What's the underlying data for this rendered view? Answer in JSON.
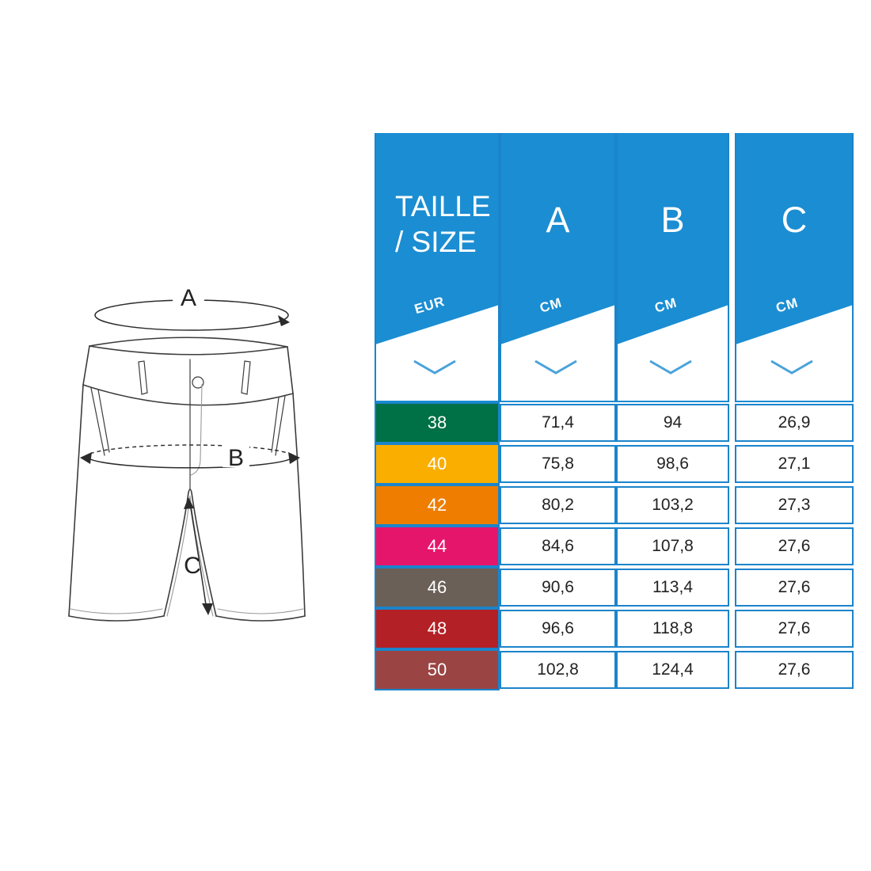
{
  "chart_data": {
    "type": "table",
    "title": "TAILLE / SIZE",
    "header": {
      "size_title_line1": "TAILLE",
      "size_title_line2": "/ SIZE",
      "size_unit": "EUR",
      "col_a_label": "A",
      "col_a_unit": "CM",
      "col_b_label": "B",
      "col_b_unit": "CM",
      "col_c_label": "C",
      "col_c_unit": "CM"
    },
    "rows": [
      {
        "size": "38",
        "color": "#007046",
        "a": "71,4",
        "b": "94",
        "c": "26,9"
      },
      {
        "size": "40",
        "color": "#F9AE00",
        "a": "75,8",
        "b": "98,6",
        "c": "27,1"
      },
      {
        "size": "42",
        "color": "#EE7D00",
        "a": "80,2",
        "b": "103,2",
        "c": "27,3"
      },
      {
        "size": "44",
        "color": "#E6156C",
        "a": "84,6",
        "b": "107,8",
        "c": "27,6"
      },
      {
        "size": "46",
        "color": "#6B6058",
        "a": "90,6",
        "b": "113,4",
        "c": "27,6"
      },
      {
        "size": "48",
        "color": "#B32025",
        "a": "96,6",
        "b": "118,8",
        "c": "27,6"
      },
      {
        "size": "50",
        "color": "#9B4444",
        "a": "102,8",
        "b": "124,4",
        "c": "27,6"
      }
    ]
  },
  "diagram": {
    "waist_label": "A",
    "hip_label": "B",
    "inseam_label": "C"
  },
  "colors": {
    "header_blue": "#1B8DD2",
    "border_blue": "#1B84CB",
    "chevron_blue": "#4AA2DB",
    "value_text": "#222222"
  }
}
